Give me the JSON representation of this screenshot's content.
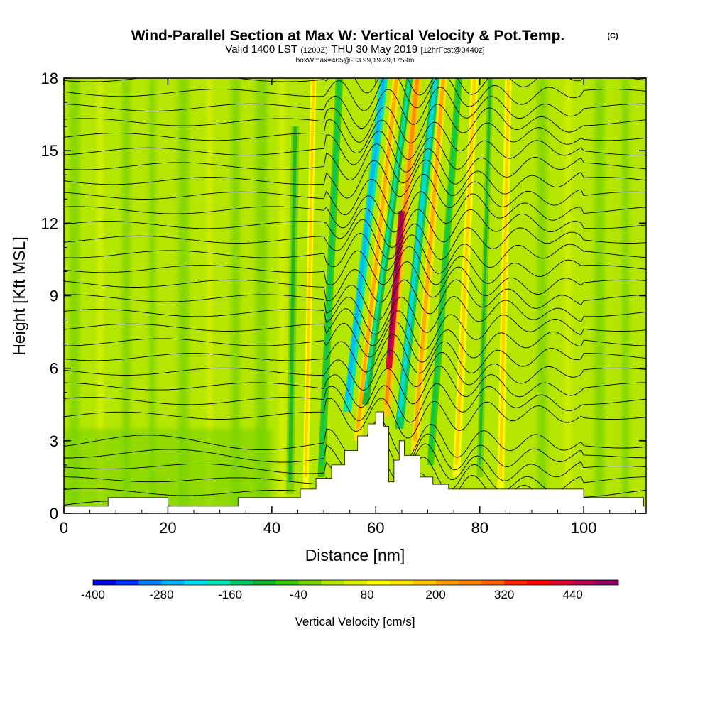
{
  "header": {
    "title": "Wind-Parallel Section at Max W: Vertical Velocity & Pot.Temp.",
    "copyright": "(C)",
    "valid_a": "Valid 1400 LST",
    "valid_b": "(1200Z)",
    "valid_c": "THU 30 May 2019",
    "valid_d": "[12hrFcst@0440z]",
    "box_info": "boxWmax=465@-33.99,19.29,1759m"
  },
  "colors": {
    "background_field": "#b4e600",
    "terrain": "#ffffff",
    "contour": "#000000",
    "frame": "#000000"
  },
  "chart_data": {
    "type": "heatmap",
    "xlabel": "Distance [nm]",
    "ylabel": "Height [Kft MSL]",
    "xlim": [
      0,
      112
    ],
    "ylim": [
      0,
      18
    ],
    "x_ticks": [
      0,
      20,
      40,
      60,
      80,
      100
    ],
    "y_ticks": [
      0,
      3,
      6,
      9,
      12,
      15,
      18
    ],
    "grid": false,
    "colorbar": {
      "label": "Vertical Velocity [cm/s]",
      "levels": [
        -400,
        -360,
        -320,
        -280,
        -240,
        -200,
        -160,
        -120,
        -80,
        -40,
        0,
        40,
        80,
        120,
        160,
        200,
        240,
        280,
        320,
        360,
        400,
        440,
        480
      ],
      "colors": [
        "#0000e6",
        "#0032ff",
        "#0082ff",
        "#00b4ff",
        "#00dcf0",
        "#00e6b4",
        "#00c864",
        "#14b432",
        "#3cc800",
        "#78d200",
        "#b4e600",
        "#dcf000",
        "#ffff00",
        "#ffe600",
        "#ffc800",
        "#ffa000",
        "#ff8200",
        "#ff6400",
        "#ff2800",
        "#ff0000",
        "#dc0032",
        "#b40050",
        "#8c0064"
      ],
      "tick_labels": [
        "-400",
        "-280",
        "-160",
        "-40",
        "80",
        "200",
        "320",
        "440"
      ]
    },
    "terrain_profile": {
      "x": [
        0,
        8.5,
        8.5,
        20,
        20,
        33.5,
        33.5,
        45.5,
        45.5,
        48.5,
        48.5,
        51.5,
        51.5,
        54,
        54,
        56.5,
        56.5,
        58.5,
        58.5,
        60,
        60,
        61.5,
        61.5,
        62.5,
        62.5,
        63.5,
        63.5,
        64.5,
        64.5,
        65.5,
        65.5,
        68.5,
        68.5,
        71,
        71,
        74,
        74,
        100,
        100,
        111.5,
        111.5
      ],
      "z": [
        0.3,
        0.3,
        0.65,
        0.65,
        0.3,
        0.3,
        0.65,
        0.65,
        1.0,
        1.0,
        1.45,
        1.45,
        2.0,
        2.0,
        2.6,
        2.6,
        3.2,
        3.2,
        3.7,
        3.7,
        4.2,
        4.2,
        3.6,
        3.6,
        1.3,
        1.3,
        2.2,
        2.2,
        3.0,
        3.0,
        2.4,
        2.4,
        1.5,
        1.5,
        1.2,
        1.2,
        1.0,
        1.0,
        0.65,
        0.65,
        0.3
      ]
    },
    "bands": [
      {
        "x0": 54.5,
        "x1": 61.5,
        "z0": 4.2,
        "z1": 18,
        "dxdz": 1.1,
        "w": -200,
        "width": 1.6
      },
      {
        "x0": 56.5,
        "x1": 64.0,
        "z0": 3.0,
        "z1": 18,
        "dxdz": 0.9,
        "w": 120,
        "width": 1.5
      },
      {
        "x0": 58.0,
        "x1": 66.5,
        "z0": 4.5,
        "z1": 18,
        "dxdz": 0.85,
        "w": -120,
        "width": 1.3
      },
      {
        "x0": 62.0,
        "x1": 68.0,
        "z0": 4.0,
        "z1": 18,
        "dxdz": 0.7,
        "w": 160,
        "width": 1.6
      },
      {
        "x0": 62.5,
        "x1": 65.0,
        "z0": 6.0,
        "z1": 12.5,
        "dxdz": 0.3,
        "w": 400,
        "width": 1.2
      },
      {
        "x0": 64.5,
        "x1": 71.5,
        "z0": 3.5,
        "z1": 18,
        "dxdz": 0.85,
        "w": -160,
        "width": 1.6
      },
      {
        "x0": 67.5,
        "x1": 73.0,
        "z0": 2.5,
        "z1": 18,
        "dxdz": 0.6,
        "w": 120,
        "width": 1.5
      },
      {
        "x0": 70.5,
        "x1": 76.0,
        "z0": 2.0,
        "z1": 18,
        "dxdz": 0.5,
        "w": -60,
        "width": 1.3
      },
      {
        "x0": 75.5,
        "x1": 79.0,
        "z0": 1.5,
        "z1": 18,
        "dxdz": 0.4,
        "w": 80,
        "width": 1.4
      },
      {
        "x0": 80.0,
        "x1": 82.0,
        "z0": 1.5,
        "z1": 18,
        "dxdz": 0.3,
        "w": -40,
        "width": 1.2
      },
      {
        "x0": 84.0,
        "x1": 85.5,
        "z0": 1.0,
        "z1": 18,
        "dxdz": 0.2,
        "w": 80,
        "width": 1.3
      },
      {
        "x0": 49.5,
        "x1": 53.0,
        "z0": 1.5,
        "z1": 18,
        "dxdz": 0.3,
        "w": -80,
        "width": 1.4
      },
      {
        "x0": 46.5,
        "x1": 48.0,
        "z0": 1.0,
        "z1": 18,
        "dxdz": 0.2,
        "w": 80,
        "width": 1.1
      },
      {
        "x0": 43.5,
        "x1": 44.5,
        "z0": 0.8,
        "z1": 16,
        "dxdz": 0.1,
        "w": -40,
        "width": 1.5
      }
    ],
    "theta_contours": {
      "count": 30,
      "levels_km_approx": "surface to 18 kft",
      "wave_region_x": [
        50,
        95
      ]
    }
  }
}
